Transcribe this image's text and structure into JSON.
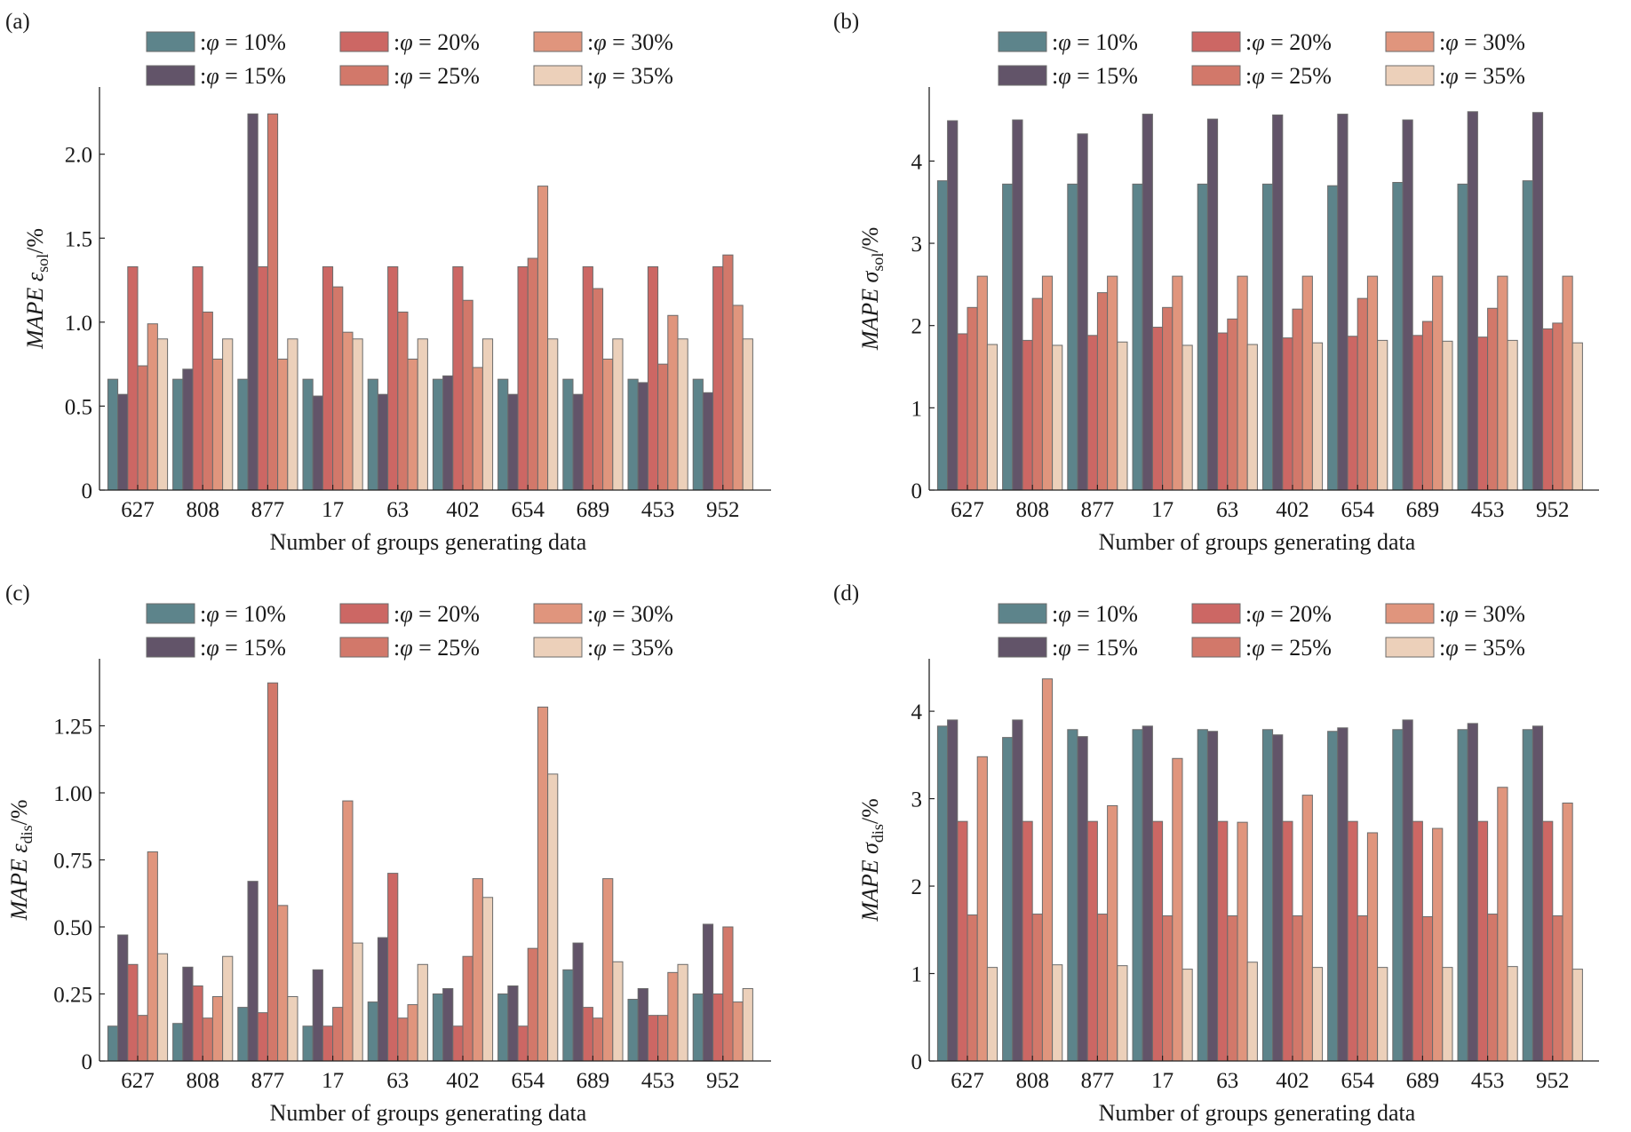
{
  "figure": {
    "xlabel": "Number of groups generating data",
    "legend_marker": ":φ = ",
    "categories": [
      "627",
      "808",
      "877",
      "17",
      "63",
      "402",
      "654",
      "689",
      "453",
      "952"
    ]
  },
  "series_styles": [
    {
      "name": "φ = 10%",
      "pct": "10%",
      "color": "#5d848b"
    },
    {
      "name": "φ = 15%",
      "pct": "15%",
      "color": "#625469"
    },
    {
      "name": "φ = 20%",
      "pct": "20%",
      "color": "#cc6764"
    },
    {
      "name": "φ = 25%",
      "pct": "25%",
      "color": "#d2786a"
    },
    {
      "name": "φ = 30%",
      "pct": "30%",
      "color": "#e0957d"
    },
    {
      "name": "φ = 35%",
      "pct": "35%",
      "color": "#ecd0ba"
    }
  ],
  "chart_data": [
    {
      "type": "bar",
      "panel": "(a)",
      "ylabel_main": "MAPE",
      "ylabel_symbol": "ε",
      "ylabel_sub": "sol",
      "ylabel_unit": "/%",
      "xlabel": "Number of groups generating data",
      "categories": [
        "627",
        "808",
        "877",
        "17",
        "63",
        "402",
        "654",
        "689",
        "453",
        "952"
      ],
      "ylim": [
        0,
        2.4
      ],
      "yticks": [
        "0",
        "0.5",
        "1.0",
        "1.5",
        "2.0"
      ],
      "ytick_values": [
        0,
        0.5,
        1.0,
        1.5,
        2.0
      ],
      "series": [
        {
          "name": "φ = 10%",
          "values": [
            0.66,
            0.66,
            0.66,
            0.66,
            0.66,
            0.66,
            0.66,
            0.66,
            0.66,
            0.66
          ]
        },
        {
          "name": "φ = 15%",
          "values": [
            0.57,
            0.72,
            2.24,
            0.56,
            0.57,
            0.68,
            0.57,
            0.57,
            0.64,
            0.58
          ]
        },
        {
          "name": "φ = 20%",
          "values": [
            1.33,
            1.33,
            1.33,
            1.33,
            1.33,
            1.33,
            1.33,
            1.33,
            1.33,
            1.33
          ]
        },
        {
          "name": "φ = 25%",
          "values": [
            0.74,
            1.06,
            2.24,
            1.21,
            1.06,
            1.13,
            1.38,
            1.2,
            0.75,
            1.4
          ]
        },
        {
          "name": "φ = 30%",
          "values": [
            0.99,
            0.78,
            0.78,
            0.94,
            0.78,
            0.73,
            1.81,
            0.78,
            1.04,
            1.1
          ]
        },
        {
          "name": "φ = 35%",
          "values": [
            0.9,
            0.9,
            0.9,
            0.9,
            0.9,
            0.9,
            0.9,
            0.9,
            0.9,
            0.9
          ]
        }
      ]
    },
    {
      "type": "bar",
      "panel": "(b)",
      "ylabel_main": "MAPE",
      "ylabel_symbol": "σ",
      "ylabel_sub": "sol",
      "ylabel_unit": "/%",
      "xlabel": "Number of groups generating data",
      "categories": [
        "627",
        "808",
        "877",
        "17",
        "63",
        "402",
        "654",
        "689",
        "453",
        "952"
      ],
      "ylim": [
        0,
        4.9
      ],
      "yticks": [
        "0",
        "1",
        "2",
        "3",
        "4"
      ],
      "ytick_values": [
        0,
        1,
        2,
        3,
        4
      ],
      "series": [
        {
          "name": "φ = 10%",
          "values": [
            3.76,
            3.72,
            3.72,
            3.72,
            3.72,
            3.72,
            3.7,
            3.74,
            3.72,
            3.76
          ]
        },
        {
          "name": "φ = 15%",
          "values": [
            4.49,
            4.5,
            4.33,
            4.57,
            4.51,
            4.56,
            4.57,
            4.5,
            4.6,
            4.59
          ]
        },
        {
          "name": "φ = 20%",
          "values": [
            1.9,
            1.82,
            1.88,
            1.98,
            1.91,
            1.85,
            1.87,
            1.88,
            1.86,
            1.96
          ]
        },
        {
          "name": "φ = 25%",
          "values": [
            2.22,
            2.33,
            2.4,
            2.22,
            2.08,
            2.2,
            2.33,
            2.05,
            2.21,
            2.03
          ]
        },
        {
          "name": "φ = 30%",
          "values": [
            2.6,
            2.6,
            2.6,
            2.6,
            2.6,
            2.6,
            2.6,
            2.6,
            2.6,
            2.6
          ]
        },
        {
          "name": "φ = 35%",
          "values": [
            1.77,
            1.76,
            1.8,
            1.76,
            1.77,
            1.79,
            1.82,
            1.81,
            1.82,
            1.79
          ]
        }
      ]
    },
    {
      "type": "bar",
      "panel": "(c)",
      "ylabel_main": "MAPE",
      "ylabel_symbol": "ε",
      "ylabel_sub": "dis",
      "ylabel_unit": "/%",
      "xlabel": "Number of groups generating data",
      "categories": [
        "627",
        "808",
        "877",
        "17",
        "63",
        "402",
        "654",
        "689",
        "453",
        "952"
      ],
      "ylim": [
        0,
        1.5
      ],
      "yticks": [
        "0",
        "0.25",
        "0.50",
        "0.75",
        "1.00",
        "1.25"
      ],
      "ytick_values": [
        0,
        0.25,
        0.5,
        0.75,
        1.0,
        1.25
      ],
      "series": [
        {
          "name": "φ = 10%",
          "values": [
            0.13,
            0.14,
            0.2,
            0.13,
            0.22,
            0.25,
            0.25,
            0.34,
            0.23,
            0.25
          ]
        },
        {
          "name": "φ = 15%",
          "values": [
            0.47,
            0.35,
            0.67,
            0.34,
            0.46,
            0.27,
            0.28,
            0.44,
            0.27,
            0.51
          ]
        },
        {
          "name": "φ = 20%",
          "values": [
            0.36,
            0.28,
            0.18,
            0.13,
            0.7,
            0.13,
            0.13,
            0.2,
            0.17,
            0.25
          ]
        },
        {
          "name": "φ = 25%",
          "values": [
            0.17,
            0.16,
            1.41,
            0.2,
            0.16,
            0.39,
            0.42,
            0.16,
            0.17,
            0.5
          ]
        },
        {
          "name": "φ = 30%",
          "values": [
            0.78,
            0.24,
            0.58,
            0.97,
            0.21,
            0.68,
            1.32,
            0.68,
            0.33,
            0.22
          ]
        },
        {
          "name": "φ = 35%",
          "values": [
            0.4,
            0.39,
            0.24,
            0.44,
            0.36,
            0.61,
            1.07,
            0.37,
            0.36,
            0.27
          ]
        }
      ]
    },
    {
      "type": "bar",
      "panel": "(d)",
      "ylabel_main": "MAPE",
      "ylabel_symbol": "σ",
      "ylabel_sub": "dis",
      "ylabel_unit": "/%",
      "xlabel": "Number of groups generating data",
      "categories": [
        "627",
        "808",
        "877",
        "17",
        "63",
        "402",
        "654",
        "689",
        "453",
        "952"
      ],
      "ylim": [
        0,
        4.6
      ],
      "yticks": [
        "0",
        "1",
        "2",
        "3",
        "4"
      ],
      "ytick_values": [
        0,
        1,
        2,
        3,
        4
      ],
      "series": [
        {
          "name": "φ = 10%",
          "values": [
            3.83,
            3.7,
            3.79,
            3.79,
            3.79,
            3.79,
            3.77,
            3.79,
            3.79,
            3.79
          ]
        },
        {
          "name": "φ = 15%",
          "values": [
            3.9,
            3.9,
            3.71,
            3.83,
            3.77,
            3.73,
            3.81,
            3.9,
            3.86,
            3.83
          ]
        },
        {
          "name": "φ = 20%",
          "values": [
            2.74,
            2.74,
            2.74,
            2.74,
            2.74,
            2.74,
            2.74,
            2.74,
            2.74,
            2.74
          ]
        },
        {
          "name": "φ = 25%",
          "values": [
            1.67,
            1.68,
            1.68,
            1.66,
            1.66,
            1.66,
            1.66,
            1.65,
            1.68,
            1.66
          ]
        },
        {
          "name": "φ = 30%",
          "values": [
            3.48,
            4.37,
            2.92,
            3.46,
            2.73,
            3.04,
            2.61,
            2.66,
            3.13,
            2.95
          ]
        },
        {
          "name": "φ = 35%",
          "values": [
            1.07,
            1.1,
            1.09,
            1.05,
            1.13,
            1.07,
            1.07,
            1.07,
            1.08,
            1.05
          ]
        }
      ]
    }
  ]
}
